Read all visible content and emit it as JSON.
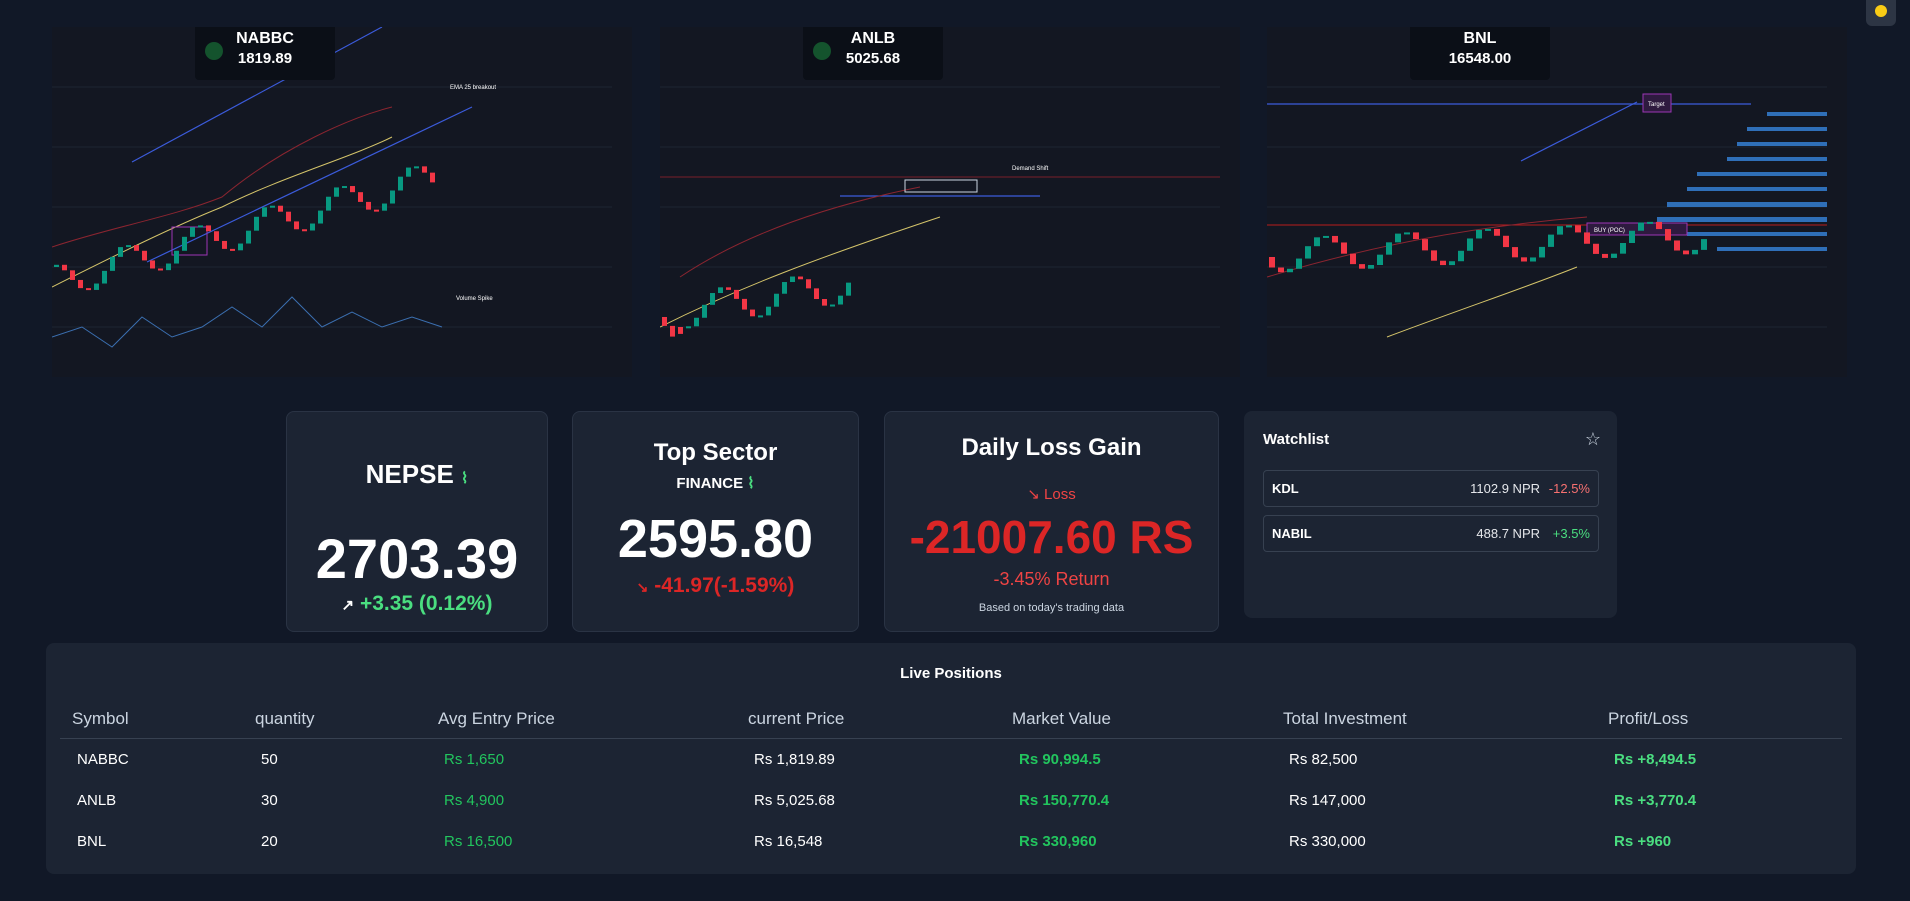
{
  "charts": [
    {
      "symbol": "NABBC",
      "price": "1819.89",
      "annotations": [
        "EMA 25 breakout",
        "Volume Spike"
      ]
    },
    {
      "symbol": "ANLB",
      "price": "5025.68",
      "annotations": [
        "Demand Shift"
      ]
    },
    {
      "symbol": "BNL",
      "price": "16548.00",
      "annotations": [
        "Target",
        "BUY (POC)"
      ]
    }
  ],
  "nepse": {
    "title": "NEPSE",
    "value": "2703.39",
    "change": "+3.35 (0.12%)"
  },
  "sector": {
    "title": "Top Sector",
    "name": "FINANCE",
    "value": "2595.80",
    "change": "-41.97(-1.59%)"
  },
  "daily": {
    "title": "Daily Loss Gain",
    "status": "Loss",
    "value": "-21007.60 RS",
    "return": "-3.45% Return",
    "note": "Based on today's trading data"
  },
  "watchlist": {
    "title": "Watchlist",
    "items": [
      {
        "symbol": "KDL",
        "price": "1102.9 NPR",
        "change": "-12.5%",
        "dir": "down"
      },
      {
        "symbol": "NABIL",
        "price": "488.7 NPR",
        "change": "+3.5%",
        "dir": "up"
      }
    ]
  },
  "positions": {
    "title": "Live Positions",
    "headers": [
      "Symbol",
      "quantity",
      "Avg Entry Price",
      "current Price",
      "Market Value",
      "Total Investment",
      "Profit/Loss"
    ],
    "rows": [
      [
        "NABBC",
        "50",
        "Rs 1,650",
        "Rs 1,819.89",
        "Rs 90,994.5",
        "Rs 82,500",
        "Rs +8,494.5"
      ],
      [
        "ANLB",
        "30",
        "Rs 4,900",
        "Rs 5,025.68",
        "Rs 150,770.4",
        "Rs 147,000",
        "Rs +3,770.4"
      ],
      [
        "BNL",
        "20",
        "Rs 16,500",
        "Rs 16,548",
        "Rs 330,960",
        "Rs 330,000",
        "Rs +960"
      ]
    ]
  },
  "colors": {
    "bg": "#111827",
    "card": "#1c2433",
    "up": "#4ade80",
    "down": "#dc2626",
    "bull": "#089981",
    "bear": "#f23645"
  }
}
